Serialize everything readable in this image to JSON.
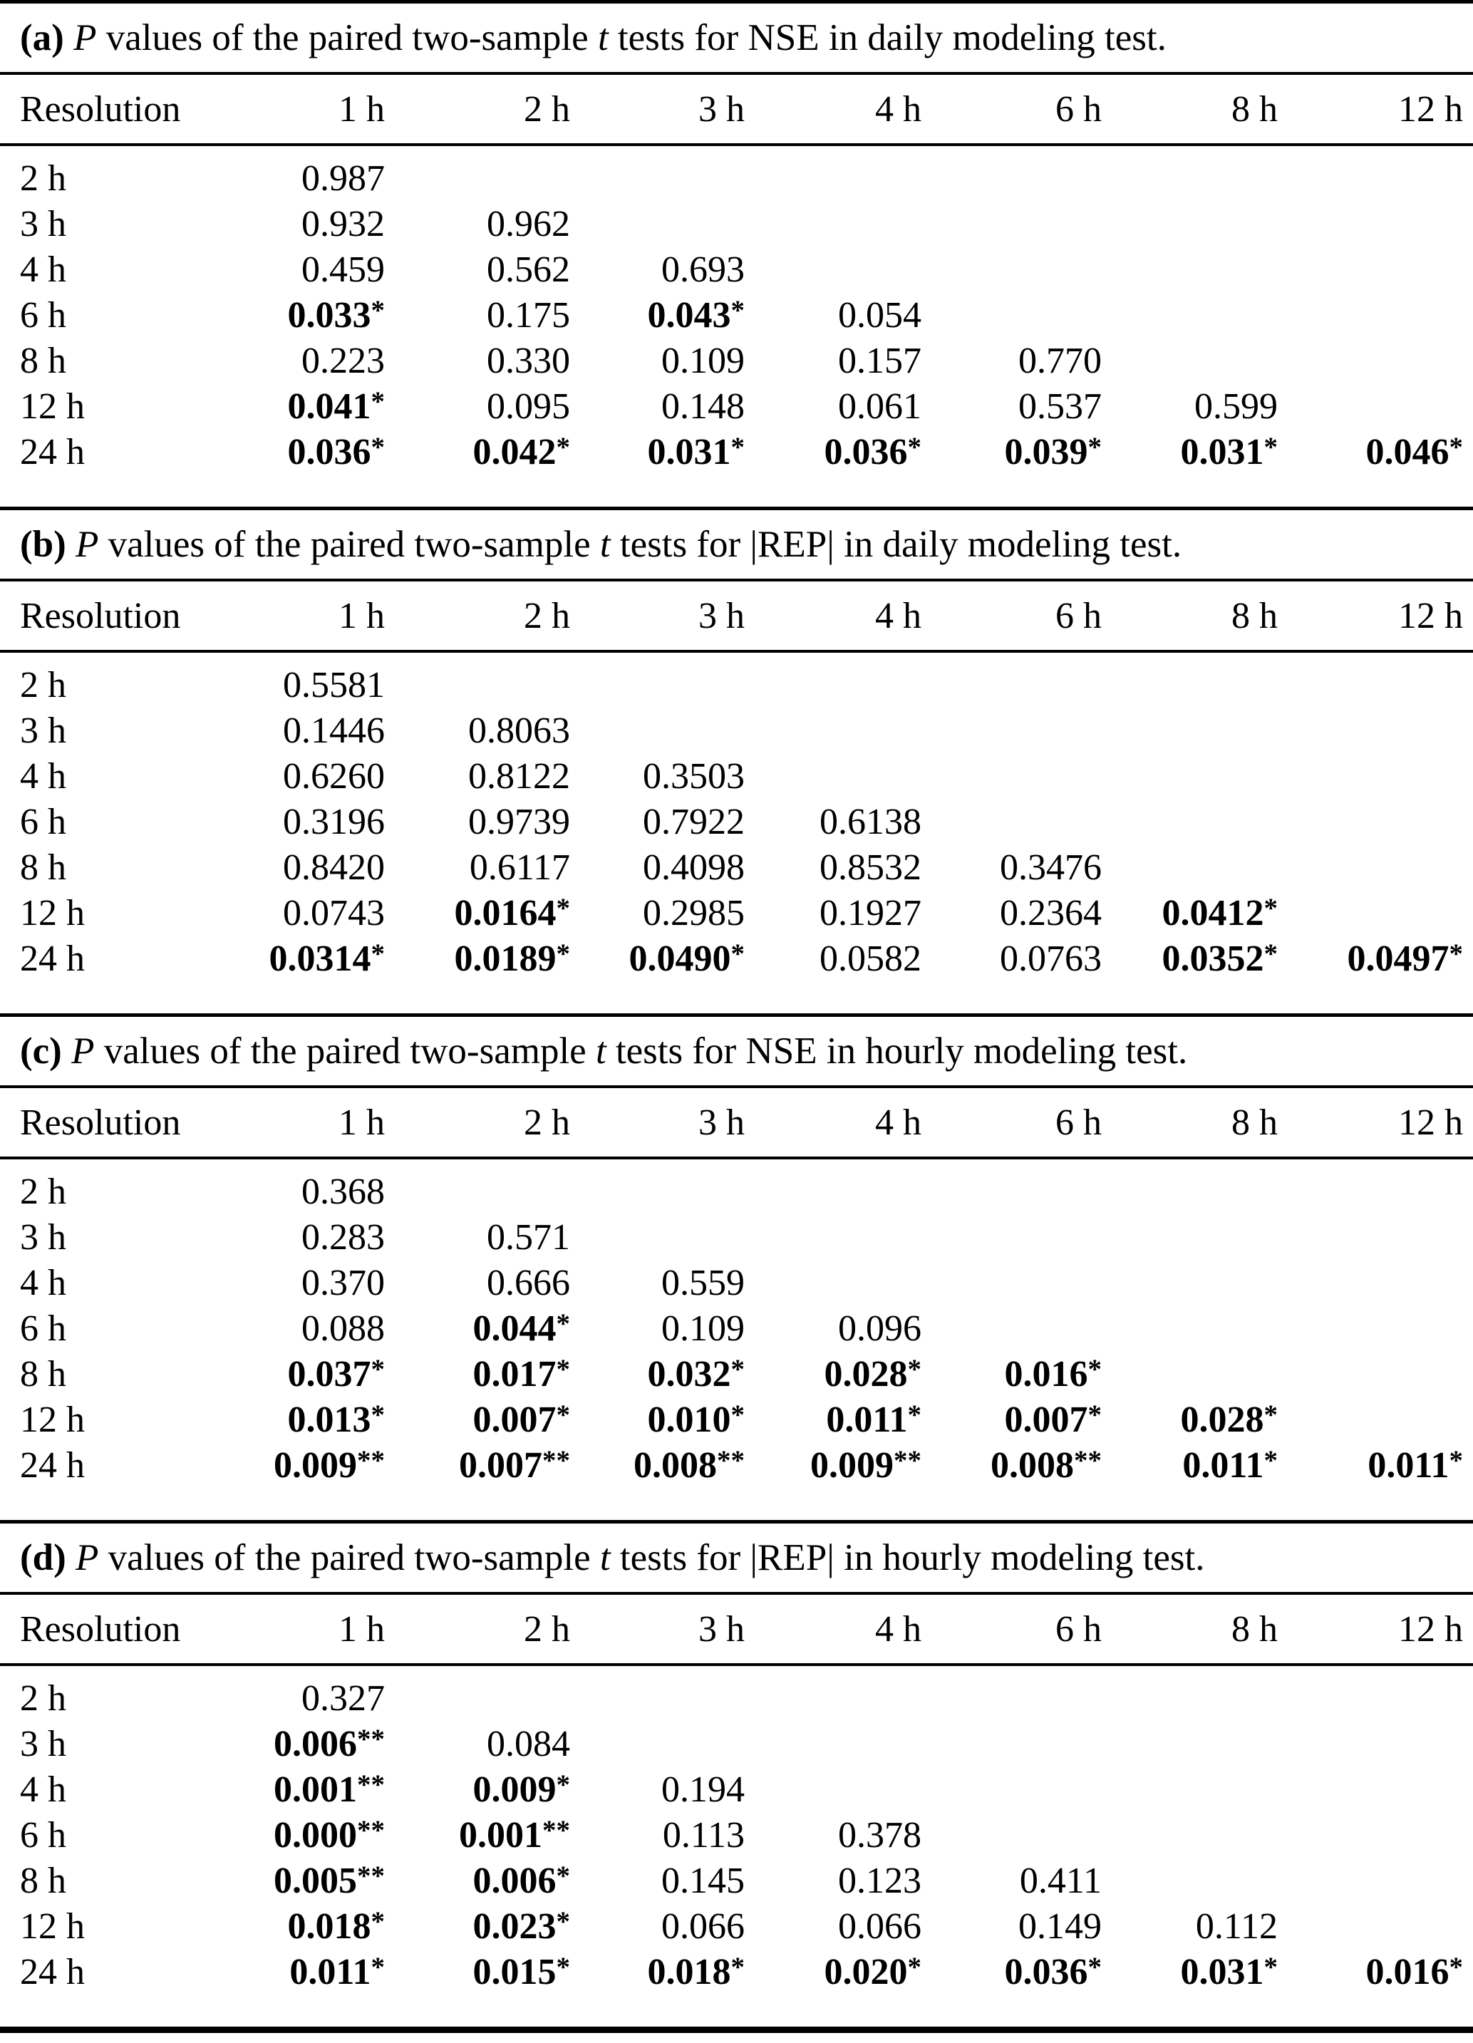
{
  "colors": {
    "text": "#000000",
    "background": "#ffffff",
    "rule": "#000000"
  },
  "columns": [
    "Resolution",
    "1 h",
    "2 h",
    "3 h",
    "4 h",
    "6 h",
    "8 h",
    "12 h"
  ],
  "significance_note": {
    "single_star": "*",
    "double_star": "**"
  },
  "tables": [
    {
      "id": "a",
      "title_segments": [
        {
          "text": "(a)",
          "style": "bold"
        },
        {
          "text": " "
        },
        {
          "text": "P",
          "style": "italic"
        },
        {
          "text": " values of the paired two-sample "
        },
        {
          "text": "t",
          "style": "italic"
        },
        {
          "text": " tests for NSE in daily modeling test."
        }
      ],
      "rows": [
        {
          "label": "2 h",
          "values": [
            "0.987"
          ]
        },
        {
          "label": "3 h",
          "values": [
            "0.932",
            "0.962"
          ]
        },
        {
          "label": "4 h",
          "values": [
            "0.459",
            "0.562",
            "0.693"
          ]
        },
        {
          "label": "6 h",
          "values": [
            "0.033*",
            "0.175",
            "0.043*",
            "0.054"
          ]
        },
        {
          "label": "8 h",
          "values": [
            "0.223",
            "0.330",
            "0.109",
            "0.157",
            "0.770"
          ]
        },
        {
          "label": "12 h",
          "values": [
            "0.041*",
            "0.095",
            "0.148",
            "0.061",
            "0.537",
            "0.599"
          ]
        },
        {
          "label": "24 h",
          "values": [
            "0.036*",
            "0.042*",
            "0.031*",
            "0.036*",
            "0.039*",
            "0.031*",
            "0.046*"
          ]
        }
      ]
    },
    {
      "id": "b",
      "title_segments": [
        {
          "text": "(b)",
          "style": "bold"
        },
        {
          "text": " "
        },
        {
          "text": "P",
          "style": "italic"
        },
        {
          "text": " values of the paired two-sample "
        },
        {
          "text": "t",
          "style": "italic"
        },
        {
          "text": " tests for |REP| in daily modeling test."
        }
      ],
      "rows": [
        {
          "label": "2 h",
          "values": [
            "0.5581"
          ]
        },
        {
          "label": "3 h",
          "values": [
            "0.1446",
            "0.8063"
          ]
        },
        {
          "label": "4 h",
          "values": [
            "0.6260",
            "0.8122",
            "0.3503"
          ]
        },
        {
          "label": "6 h",
          "values": [
            "0.3196",
            "0.9739",
            "0.7922",
            "0.6138"
          ]
        },
        {
          "label": "8 h",
          "values": [
            "0.8420",
            "0.6117",
            "0.4098",
            "0.8532",
            "0.3476"
          ]
        },
        {
          "label": "12 h",
          "values": [
            "0.0743",
            "0.0164*",
            "0.2985",
            "0.1927",
            "0.2364",
            "0.0412*"
          ]
        },
        {
          "label": "24 h",
          "values": [
            "0.0314*",
            "0.0189*",
            "0.0490*",
            "0.0582",
            "0.0763",
            "0.0352*",
            "0.0497*"
          ]
        }
      ]
    },
    {
      "id": "c",
      "title_segments": [
        {
          "text": "(c)",
          "style": "bold"
        },
        {
          "text": " "
        },
        {
          "text": "P",
          "style": "italic"
        },
        {
          "text": " values of the paired two-sample "
        },
        {
          "text": "t",
          "style": "italic"
        },
        {
          "text": " tests for NSE in hourly modeling test."
        }
      ],
      "rows": [
        {
          "label": "2 h",
          "values": [
            "0.368"
          ]
        },
        {
          "label": "3 h",
          "values": [
            "0.283",
            "0.571"
          ]
        },
        {
          "label": "4 h",
          "values": [
            "0.370",
            "0.666",
            "0.559"
          ]
        },
        {
          "label": "6 h",
          "values": [
            "0.088",
            "0.044*",
            "0.109",
            "0.096"
          ]
        },
        {
          "label": "8 h",
          "values": [
            "0.037*",
            "0.017*",
            "0.032*",
            "0.028*",
            "0.016*"
          ]
        },
        {
          "label": "12 h",
          "values": [
            "0.013*",
            "0.007*",
            "0.010*",
            "0.011*",
            "0.007*",
            "0.028*"
          ]
        },
        {
          "label": "24 h",
          "values": [
            "0.009**",
            "0.007**",
            "0.008**",
            "0.009**",
            "0.008**",
            "0.011*",
            "0.011*"
          ]
        }
      ]
    },
    {
      "id": "d",
      "title_segments": [
        {
          "text": "(d)",
          "style": "bold"
        },
        {
          "text": " "
        },
        {
          "text": "P",
          "style": "italic"
        },
        {
          "text": " values of the paired two-sample "
        },
        {
          "text": "t",
          "style": "italic"
        },
        {
          "text": " tests for |REP| in hourly modeling test."
        }
      ],
      "rows": [
        {
          "label": "2 h",
          "values": [
            "0.327"
          ]
        },
        {
          "label": "3 h",
          "values": [
            "0.006**",
            "0.084"
          ]
        },
        {
          "label": "4 h",
          "values": [
            "0.001**",
            "0.009*",
            "0.194"
          ]
        },
        {
          "label": "6 h",
          "values": [
            "0.000**",
            "0.001**",
            "0.113",
            "0.378"
          ]
        },
        {
          "label": "8 h",
          "values": [
            "0.005**",
            "0.006*",
            "0.145",
            "0.123",
            "0.411"
          ]
        },
        {
          "label": "12 h",
          "values": [
            "0.018*",
            "0.023*",
            "0.066",
            "0.066",
            "0.149",
            "0.112"
          ]
        },
        {
          "label": "24 h",
          "values": [
            "0.011*",
            "0.015*",
            "0.018*",
            "0.020*",
            "0.036*",
            "0.031*",
            "0.016*"
          ]
        }
      ]
    }
  ]
}
